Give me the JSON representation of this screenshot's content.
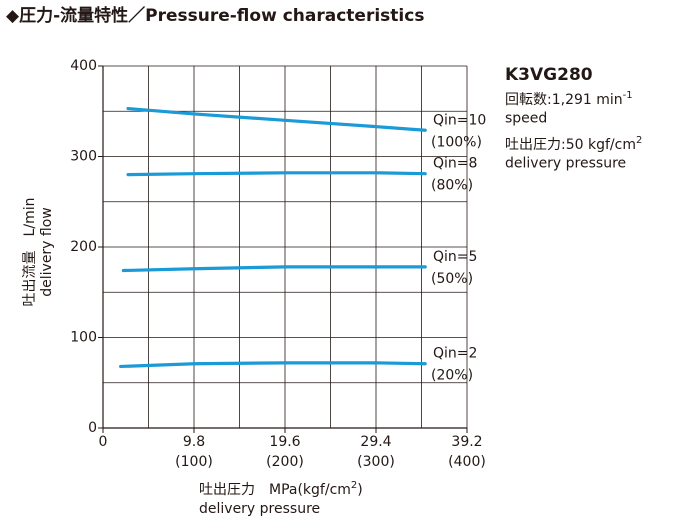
{
  "chart_data": {
    "type": "line",
    "title": "◆圧力-流量特性／Pressure-flow characteristics",
    "model": "K3VG280",
    "spec_lines": [
      {
        "text": "回転数:1,291 min",
        "sup": "-1"
      },
      {
        "text": "speed"
      },
      {
        "text": "吐出圧力:50 kgf/cm",
        "sup": "2"
      },
      {
        "text": "delivery pressure"
      }
    ],
    "ylabel": [
      "吐出流量　L/min",
      "delivery flow"
    ],
    "xlabel": {
      "parts": [
        "吐出圧力　MPa(kgf/cm",
        "2",
        ")"
      ],
      "line2": "delivery pressure"
    },
    "xlim": [
      0,
      39.2
    ],
    "ylim": [
      0,
      400
    ],
    "x2lim": [
      0,
      400
    ],
    "xticks": [
      0,
      9.8,
      19.6,
      29.4,
      39.2
    ],
    "x2ticks": [
      {
        "value": 100,
        "label": "(100)"
      },
      {
        "value": 200,
        "label": "(200)"
      },
      {
        "value": 300,
        "label": "(300)"
      },
      {
        "value": 400,
        "label": "(400)"
      }
    ],
    "yticks": [
      0,
      100,
      200,
      300,
      400
    ],
    "xgrid": [
      4.9,
      9.8,
      14.7,
      19.6,
      24.5,
      29.4,
      34.3,
      39.2
    ],
    "ygrid": [
      50,
      100,
      150,
      200,
      250,
      300,
      350,
      400
    ],
    "grid": true,
    "series": [
      {
        "name": "Qin=10",
        "percent": "(100%)",
        "color": "#1a9ad6",
        "x": [
          2.7,
          9.8,
          19.6,
          29.4,
          34.7
        ],
        "values": [
          353,
          347,
          340,
          333,
          329
        ]
      },
      {
        "name": "Qin=8",
        "percent": "(80%)",
        "color": "#1a9ad6",
        "x": [
          2.7,
          9.8,
          19.6,
          29.4,
          34.7
        ],
        "values": [
          280,
          281,
          282,
          282,
          281
        ]
      },
      {
        "name": "Qin=5",
        "percent": "(50%)",
        "color": "#1a9ad6",
        "x": [
          2.2,
          9.8,
          19.6,
          29.4,
          34.7
        ],
        "values": [
          174,
          176,
          178,
          178,
          178
        ]
      },
      {
        "name": "Qin=2",
        "percent": "(20%)",
        "color": "#1a9ad6",
        "x": [
          1.9,
          9.8,
          19.6,
          29.4,
          34.7
        ],
        "values": [
          68,
          71,
          72,
          72,
          71
        ]
      }
    ]
  }
}
